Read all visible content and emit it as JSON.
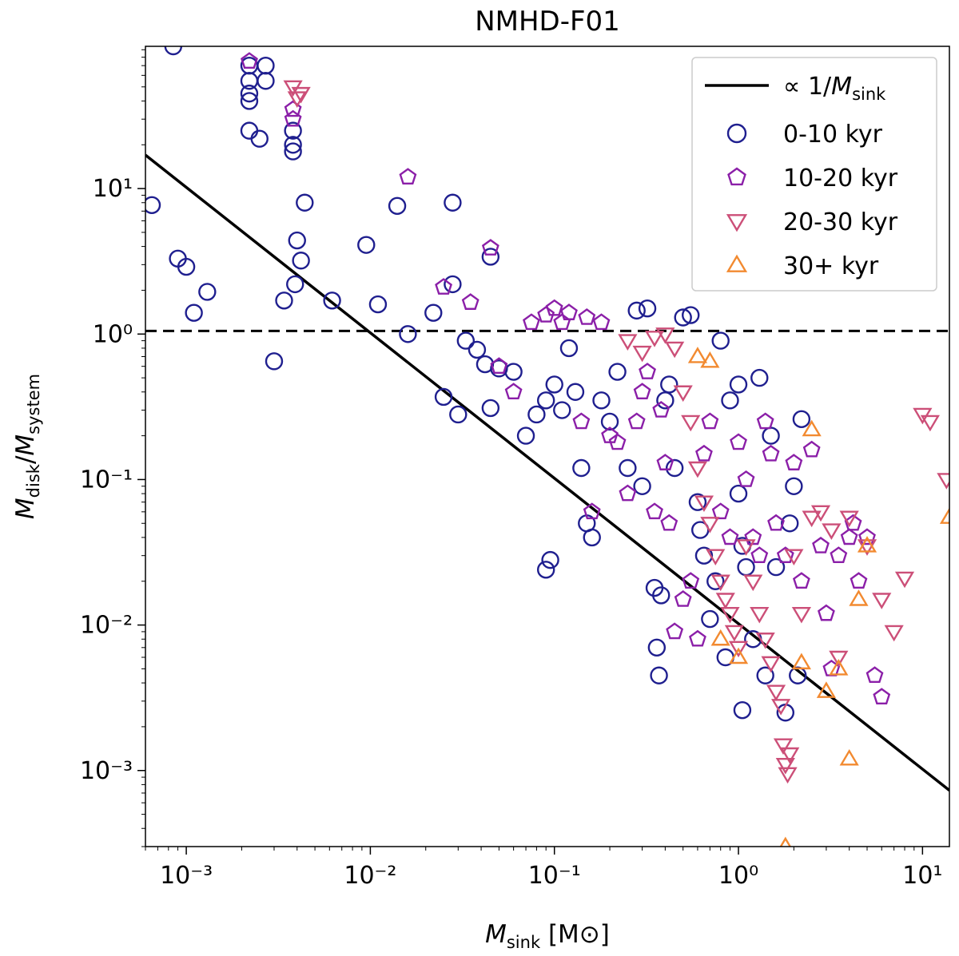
{
  "chart_data": {
    "type": "scatter",
    "title": "NMHD-F01",
    "xlabel": {
      "main": "M",
      "sub": "sink",
      "unit": "[M⊙]"
    },
    "ylabel": {
      "num": "M",
      "num_sub": "disk",
      "den": "M",
      "den_sub": "system"
    },
    "xscale": "log",
    "yscale": "log",
    "xlim": [
      0.0006,
      14
    ],
    "ylim": [
      0.0003,
      95
    ],
    "xticks": [
      {
        "value": 0.001,
        "label": "10⁻³"
      },
      {
        "value": 0.01,
        "label": "10⁻²"
      },
      {
        "value": 0.1,
        "label": "10⁻¹"
      },
      {
        "value": 1,
        "label": "10⁰"
      },
      {
        "value": 10,
        "label": "10¹"
      }
    ],
    "yticks": [
      {
        "value": 0.001,
        "label": "10⁻³"
      },
      {
        "value": 0.01,
        "label": "10⁻²"
      },
      {
        "value": 0.1,
        "label": "10⁻¹"
      },
      {
        "value": 1,
        "label": "10⁰"
      },
      {
        "value": 10,
        "label": "10¹"
      }
    ],
    "legend_position": "top-right",
    "reference_lines": [
      {
        "name": "proportional-line",
        "label_prefix": "∝ 1/M",
        "label_sub": "sink",
        "style": "solid",
        "color": "#000000",
        "points": [
          [
            0.0006,
            17
          ],
          [
            14,
            0.00073
          ]
        ]
      },
      {
        "name": "unity-line",
        "style": "dashed",
        "color": "#000000",
        "y": 1.05
      }
    ],
    "series": [
      {
        "name": "0-10 kyr",
        "marker": "circle",
        "color": "#1f1f8f",
        "points": [
          [
            0.00065,
            7.7
          ],
          [
            0.00085,
            95
          ],
          [
            0.0009,
            3.3
          ],
          [
            0.001,
            2.9
          ],
          [
            0.0011,
            1.4
          ],
          [
            0.0013,
            1.95
          ],
          [
            0.0022,
            25
          ],
          [
            0.0022,
            40
          ],
          [
            0.0022,
            45
          ],
          [
            0.0022,
            55
          ],
          [
            0.0022,
            70
          ],
          [
            0.0025,
            22
          ],
          [
            0.0027,
            70
          ],
          [
            0.0027,
            55
          ],
          [
            0.003,
            0.65
          ],
          [
            0.0034,
            1.7
          ],
          [
            0.0038,
            25
          ],
          [
            0.0038,
            18
          ],
          [
            0.0038,
            20
          ],
          [
            0.0039,
            2.2
          ],
          [
            0.004,
            4.4
          ],
          [
            0.0042,
            3.2
          ],
          [
            0.0044,
            8
          ],
          [
            0.0062,
            1.7
          ],
          [
            0.0095,
            4.1
          ],
          [
            0.011,
            1.6
          ],
          [
            0.014,
            7.6
          ],
          [
            0.016,
            1.0
          ],
          [
            0.022,
            1.4
          ],
          [
            0.025,
            0.37
          ],
          [
            0.028,
            8
          ],
          [
            0.028,
            2.2
          ],
          [
            0.03,
            0.28
          ],
          [
            0.033,
            0.9
          ],
          [
            0.038,
            0.78
          ],
          [
            0.042,
            0.62
          ],
          [
            0.045,
            0.31
          ],
          [
            0.045,
            3.4
          ],
          [
            0.05,
            0.58
          ],
          [
            0.06,
            0.55
          ],
          [
            0.07,
            0.2
          ],
          [
            0.08,
            0.28
          ],
          [
            0.09,
            0.024
          ],
          [
            0.09,
            0.35
          ],
          [
            0.095,
            0.028
          ],
          [
            0.1,
            0.45
          ],
          [
            0.11,
            0.3
          ],
          [
            0.12,
            0.8
          ],
          [
            0.13,
            0.4
          ],
          [
            0.14,
            0.12
          ],
          [
            0.15,
            0.05
          ],
          [
            0.16,
            0.04
          ],
          [
            0.18,
            0.35
          ],
          [
            0.2,
            0.25
          ],
          [
            0.22,
            0.55
          ],
          [
            0.25,
            0.12
          ],
          [
            0.28,
            1.45
          ],
          [
            0.3,
            0.09
          ],
          [
            0.32,
            1.5
          ],
          [
            0.35,
            0.018
          ],
          [
            0.36,
            0.007
          ],
          [
            0.37,
            0.0045
          ],
          [
            0.38,
            0.016
          ],
          [
            0.4,
            0.35
          ],
          [
            0.42,
            0.45
          ],
          [
            0.45,
            0.12
          ],
          [
            0.5,
            1.3
          ],
          [
            0.55,
            1.35
          ],
          [
            0.6,
            0.07
          ],
          [
            0.62,
            0.045
          ],
          [
            0.65,
            0.03
          ],
          [
            0.7,
            0.011
          ],
          [
            0.75,
            0.02
          ],
          [
            0.8,
            0.9
          ],
          [
            0.85,
            0.006
          ],
          [
            0.9,
            0.35
          ],
          [
            1.0,
            0.45
          ],
          [
            1.0,
            0.08
          ],
          [
            1.05,
            0.035
          ],
          [
            1.05,
            0.0026
          ],
          [
            1.1,
            0.025
          ],
          [
            1.2,
            0.008
          ],
          [
            1.3,
            0.5
          ],
          [
            1.4,
            0.0045
          ],
          [
            1.5,
            0.2
          ],
          [
            1.6,
            0.025
          ],
          [
            1.8,
            0.0025
          ],
          [
            1.9,
            0.05
          ],
          [
            2.0,
            0.09
          ],
          [
            2.1,
            0.0045
          ],
          [
            2.2,
            0.26
          ]
        ]
      },
      {
        "name": "10-20 kyr",
        "marker": "pentagon",
        "color": "#8b1fa8",
        "points": [
          [
            0.0022,
            75
          ],
          [
            0.0038,
            35
          ],
          [
            0.0038,
            30
          ],
          [
            0.016,
            12
          ],
          [
            0.025,
            2.1
          ],
          [
            0.035,
            1.65
          ],
          [
            0.045,
            3.9
          ],
          [
            0.05,
            0.6
          ],
          [
            0.06,
            0.4
          ],
          [
            0.075,
            1.2
          ],
          [
            0.09,
            1.35
          ],
          [
            0.1,
            1.5
          ],
          [
            0.11,
            1.2
          ],
          [
            0.12,
            1.4
          ],
          [
            0.14,
            0.25
          ],
          [
            0.15,
            1.3
          ],
          [
            0.16,
            0.06
          ],
          [
            0.18,
            1.2
          ],
          [
            0.2,
            0.2
          ],
          [
            0.22,
            0.18
          ],
          [
            0.25,
            0.08
          ],
          [
            0.28,
            0.25
          ],
          [
            0.3,
            0.4
          ],
          [
            0.32,
            0.55
          ],
          [
            0.35,
            0.06
          ],
          [
            0.38,
            0.3
          ],
          [
            0.4,
            0.13
          ],
          [
            0.42,
            0.05
          ],
          [
            0.45,
            0.009
          ],
          [
            0.5,
            0.015
          ],
          [
            0.55,
            0.02
          ],
          [
            0.6,
            0.008
          ],
          [
            0.65,
            0.15
          ],
          [
            0.7,
            0.25
          ],
          [
            0.8,
            0.06
          ],
          [
            0.9,
            0.04
          ],
          [
            1.0,
            0.18
          ],
          [
            1.1,
            0.1
          ],
          [
            1.2,
            0.04
          ],
          [
            1.3,
            0.03
          ],
          [
            1.4,
            0.25
          ],
          [
            1.5,
            0.15
          ],
          [
            1.6,
            0.05
          ],
          [
            1.8,
            0.03
          ],
          [
            2.0,
            0.13
          ],
          [
            2.2,
            0.02
          ],
          [
            2.5,
            0.16
          ],
          [
            2.8,
            0.035
          ],
          [
            3.0,
            0.012
          ],
          [
            3.2,
            0.005
          ],
          [
            3.5,
            0.03
          ],
          [
            4.0,
            0.04
          ],
          [
            4.2,
            0.05
          ],
          [
            4.5,
            0.02
          ],
          [
            5.0,
            0.04
          ],
          [
            5.5,
            0.0045
          ],
          [
            6.0,
            0.0032
          ]
        ]
      },
      {
        "name": "20-30 kyr",
        "marker": "triangle-down",
        "color": "#cc4f78",
        "points": [
          [
            0.0038,
            50
          ],
          [
            0.004,
            42
          ],
          [
            0.0042,
            45
          ],
          [
            0.25,
            0.9
          ],
          [
            0.3,
            0.75
          ],
          [
            0.35,
            0.95
          ],
          [
            0.4,
            1.0
          ],
          [
            0.45,
            0.8
          ],
          [
            0.5,
            0.4
          ],
          [
            0.55,
            0.25
          ],
          [
            0.6,
            0.12
          ],
          [
            0.65,
            0.07
          ],
          [
            0.7,
            0.05
          ],
          [
            0.75,
            0.03
          ],
          [
            0.8,
            0.02
          ],
          [
            0.85,
            0.015
          ],
          [
            0.9,
            0.012
          ],
          [
            0.95,
            0.009
          ],
          [
            1.0,
            0.007
          ],
          [
            1.1,
            0.035
          ],
          [
            1.2,
            0.02
          ],
          [
            1.3,
            0.012
          ],
          [
            1.4,
            0.008
          ],
          [
            1.5,
            0.0055
          ],
          [
            1.6,
            0.0035
          ],
          [
            1.7,
            0.0028
          ],
          [
            1.75,
            0.0015
          ],
          [
            1.8,
            0.0011
          ],
          [
            1.85,
            0.00095
          ],
          [
            1.9,
            0.0013
          ],
          [
            2.0,
            0.03
          ],
          [
            2.2,
            0.012
          ],
          [
            2.5,
            0.055
          ],
          [
            2.8,
            0.06
          ],
          [
            3.2,
            0.045
          ],
          [
            3.5,
            0.006
          ],
          [
            4.0,
            0.055
          ],
          [
            5.0,
            0.035
          ],
          [
            6.0,
            0.015
          ],
          [
            7.0,
            0.009
          ],
          [
            8.0,
            0.021
          ],
          [
            10.0,
            0.28
          ],
          [
            11.0,
            0.25
          ],
          [
            13.5,
            0.1
          ]
        ]
      },
      {
        "name": "30+ kyr",
        "marker": "triangle-up",
        "color": "#f28a30",
        "points": [
          [
            0.6,
            0.7
          ],
          [
            0.7,
            0.65
          ],
          [
            0.8,
            0.008
          ],
          [
            1.0,
            0.006
          ],
          [
            1.8,
            0.0003
          ],
          [
            2.2,
            0.0055
          ],
          [
            2.5,
            0.22
          ],
          [
            3.0,
            0.0035
          ],
          [
            3.5,
            0.005
          ],
          [
            4.0,
            0.0012
          ],
          [
            4.5,
            0.015
          ],
          [
            5.0,
            0.035
          ],
          [
            14,
            0.055
          ]
        ]
      }
    ]
  }
}
